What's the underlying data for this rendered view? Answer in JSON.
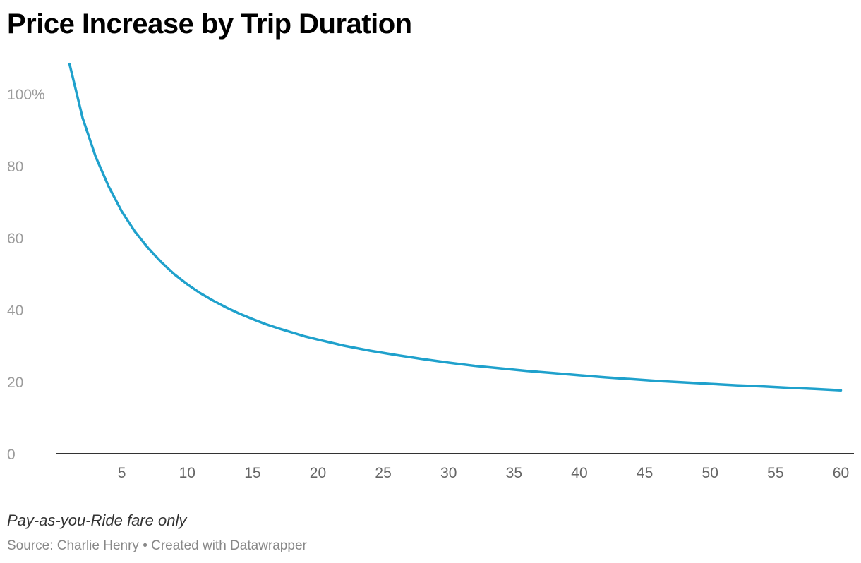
{
  "chart_data": {
    "type": "line",
    "title": "Price Increase by Trip Duration",
    "xlabel": "",
    "ylabel": "",
    "xlim": [
      0,
      61
    ],
    "ylim": [
      0,
      100
    ],
    "x_ticks": [
      5,
      10,
      15,
      20,
      25,
      30,
      35,
      40,
      45,
      50,
      55,
      60
    ],
    "y_ticks": [
      0,
      20,
      40,
      60,
      80,
      100
    ],
    "y_tick_labels": [
      "0",
      "20",
      "40",
      "60",
      "80",
      "100%"
    ],
    "grid": false,
    "legend": "none",
    "series": [
      {
        "color": "#1fa1cc",
        "x": [
          1,
          2,
          3,
          4,
          5,
          6,
          7,
          8,
          9,
          10,
          11,
          12,
          13,
          14,
          15,
          16,
          17,
          18,
          19,
          20,
          22,
          24,
          26,
          28,
          30,
          32,
          34,
          36,
          38,
          40,
          42,
          44,
          46,
          48,
          50,
          52,
          54,
          56,
          58,
          60
        ],
        "values": [
          108.3,
          93.3,
          82.5,
          74.2,
          67.3,
          61.7,
          57.2,
          53.3,
          49.9,
          47.1,
          44.6,
          42.5,
          40.6,
          38.9,
          37.4,
          36.0,
          34.8,
          33.7,
          32.6,
          31.7,
          30.0,
          28.6,
          27.4,
          26.3,
          25.3,
          24.4,
          23.7,
          23.0,
          22.4,
          21.8,
          21.2,
          20.7,
          20.2,
          19.8,
          19.4,
          19.0,
          18.7,
          18.3,
          18.0,
          17.6
        ]
      }
    ]
  },
  "notes": "Pay-as-you-Ride fare only",
  "source": "Source: Charlie Henry • Created with Datawrapper"
}
